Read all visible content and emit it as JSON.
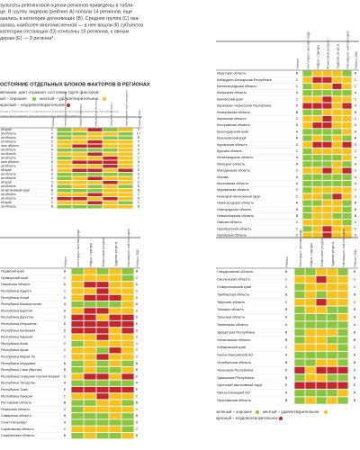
{
  "text": {
    "paragraph": [
      "зультаты рейтинговой оценки регионов приведены в табли-",
      "це. В группу лидеров (рейтинг A) попали 14 регионов, еще",
      "азались в категории догоняющих (B). Средняя группа (C) ока-",
      "залась наиболее многочисленной — в нее вошли 30 субъектов",
      "категории отстающих (D) отнесены 15 регионов, к явным",
      "дерам (E) — 3 региона*."
    ],
    "heading": "ОСТОЯНИЕ ОТДЕЛЬНЫХ БЛОКОВ ФАКТОРОВ В РЕГИОНАХ",
    "legend": [
      "мечание: цвет отражает состояние групп факторов:",
      "ый – хорошее",
      "желтый – удовлетворительное",
      "красный – неудовлетворительное"
    ],
    "note": [
      "блоки в Рейтинге № 1 Совокупность в рейтинге не предусмотрена по причине отсут-",
      "ствия необходимых для регионального рейтинга данных"
    ]
  },
  "palette": {
    "g": "#8cc63f",
    "y": "#f6c21c",
    "r": "#c1272d"
  },
  "columns": [
    "Рейтинг",
    "Институцио- нальная среда",
    "Инфра- структура",
    "Финансовые ресурсы",
    "Трудовые ресурсы",
    "Инновацион- ный потенциал",
    "Рейтинг 2011"
  ],
  "bottom_legend": [
    "зеленый – хорошее",
    "желтый – удовлетворительное",
    "красный – неудовлетворительное"
  ],
  "tables": [
    {
      "rows": [
        [
          "ий край",
          "C",
          "gyrgy",
          "C"
        ],
        [
          "ая область",
          "C",
          "ggyyg",
          "C+"
        ],
        [
          "ая область",
          "B",
          "gyygg",
          "B"
        ],
        [
          "ая область",
          "C",
          "yyryy",
          "C"
        ],
        [
          "ская область",
          "C",
          "yrryy",
          "D"
        ],
        [
          "ая область",
          "A",
          "ggggy",
          "A"
        ],
        [
          "ая область",
          "C",
          "yyryy",
          "C"
        ],
        [
          "ая область",
          "C",
          "gyyry",
          "C"
        ],
        [
          "ская область",
          "D",
          "yrrry",
          "D"
        ],
        [
          "ая область",
          "C",
          "yyyry",
          "C"
        ],
        [
          "ий край",
          "D",
          "yrryr",
          "D"
        ],
        [
          "ая область",
          "A",
          "ggggg",
          "A"
        ],
        [
          "ая область",
          "C",
          "gyryy",
          "C"
        ],
        [
          "ий край",
          "C",
          "yyyry",
          "C"
        ],
        [
          "ая область",
          "B",
          "gygyg",
          "B"
        ],
        [
          "ий автономный округ",
          "B",
          "gggyy",
          "B"
        ],
        [
          "ая область",
          "C",
          "yyryy",
          "C"
        ],
        [
          "ая область",
          "D",
          "rryry",
          "D"
        ],
        [
          "ий край",
          "C",
          "yyryg",
          "C"
        ],
        [
          "ая область",
          "B",
          "gggyy",
          "B"
        ]
      ]
    },
    {
      "rows": [
        [
          "Иркутская область",
          "B",
          "gyyyg",
          "B"
        ],
        [
          "Кабардино-Балкарская Республика",
          "C",
          "yrryy",
          "C"
        ],
        [
          "Калининградская область",
          "C",
          "gyyry",
          "C"
        ],
        [
          "Калужская область",
          "A",
          "ggggg",
          "A"
        ],
        [
          "Камчатский край",
          "C",
          "yyryy",
          "C"
        ],
        [
          "Карачаево-Черкесская Республика",
          "D",
          "rrryr",
          "D"
        ],
        [
          "Кемеровская область",
          "B",
          "ggyyy",
          "B"
        ],
        [
          "Кировская область",
          "C",
          "yyryy",
          "C"
        ],
        [
          "Костромская область",
          "D",
          "yrryy",
          "D"
        ],
        [
          "Краснодарский край",
          "A",
          "ggggy",
          "A"
        ],
        [
          "Красноярский край",
          "B",
          "gygyg",
          "B"
        ],
        [
          "Курганская область",
          "D",
          "yrryr",
          "D"
        ],
        [
          "Курская область",
          "C",
          "gyyyy",
          "C"
        ],
        [
          "Ленинградская область",
          "A",
          "ggggy",
          "A"
        ],
        [
          "Липецкая область",
          "A",
          "gggyg",
          "A"
        ],
        [
          "Магаданская область",
          "C",
          "yyryr",
          "C"
        ],
        [
          "Москва",
          "A",
          "ggggg",
          "A"
        ],
        [
          "Московская область",
          "A",
          "ggggg",
          "A"
        ],
        [
          "Мурманская область",
          "C",
          "gyyyy",
          "C"
        ],
        [
          "Ненецкий автономный округ",
          "C",
          "yygry",
          "C"
        ],
        [
          "Нижегородская область",
          "B",
          "ggyyg",
          "B"
        ],
        [
          "Новгородская область",
          "B",
          "gyyyg",
          "B"
        ],
        [
          "Новосибирская область",
          "B",
          "gyygg",
          "B"
        ],
        [
          "Омская область",
          "C",
          "yyyyg",
          "C"
        ],
        [
          "Оренбургская область",
          "C",
          "gyryy",
          "C"
        ],
        [
          "Орловская область",
          "C",
          "yyryy",
          "D"
        ]
      ]
    },
    {
      "rows": [
        [
          "Пермский край",
          "B",
          "gygyg",
          "B"
        ],
        [
          "Приморский край",
          "C",
          "yyyyg",
          "C"
        ],
        [
          "Псковская область",
          "D",
          "yrryy",
          "D"
        ],
        [
          "Республика Адыгея",
          "C",
          "yyryy",
          "C"
        ],
        [
          "Республика Алтай",
          "D",
          "yrrry",
          "D"
        ],
        [
          "Республика Башкортостан",
          "A",
          "ggggy",
          "A"
        ],
        [
          "Республика Бурятия",
          "D",
          "yrryy",
          "C"
        ],
        [
          "Республика Дагестан",
          "D",
          "rryrr",
          "D"
        ],
        [
          "Республика Ингушетия",
          "E",
          "rrrrr",
          "E"
        ],
        [
          "Республика Калмыкия",
          "D",
          "rrryr",
          "D"
        ],
        [
          "Республика Карелия",
          "C",
          "yyryy",
          "C"
        ],
        [
          "Республика Коми",
          "C",
          "gyyyy",
          "C"
        ],
        [
          "Республика Крым",
          "C",
          "yygry",
          "C"
        ],
        [
          "Республика Марий Эл",
          "C",
          "yyryy",
          "C"
        ],
        [
          "Республика Мордовия",
          "B",
          "gygyg",
          "B"
        ],
        [
          "Республика Саха (Якутия)",
          "B",
          "gyggy",
          "B"
        ],
        [
          "Республика Северная Осетия-Алания",
          "D",
          "yrryr",
          "D"
        ],
        [
          "Республика Татарстан",
          "A",
          "ggggg",
          "A"
        ],
        [
          "Республика Тыва",
          "E",
          "rrrrr",
          "E"
        ],
        [
          "Республика Хакасия",
          "C",
          "yyryy",
          "C"
        ],
        [
          "Ростовская область",
          "B",
          "ggyyg",
          "B"
        ],
        [
          "Рязанская область",
          "C",
          "gyyyy",
          "C"
        ],
        [
          "Самарская область",
          "B",
          "gggyg",
          "B"
        ],
        [
          "Санкт-Петербург",
          "A",
          "ggggg",
          "A"
        ],
        [
          "Саратовская область",
          "C",
          "yyyyg",
          "C"
        ],
        [
          "Сахалинская область",
          "B",
          "gyggy",
          "B"
        ]
      ]
    },
    {
      "rows": [
        [
          "Свердловская область",
          "B",
          "ggyyg",
          "B"
        ],
        [
          "Смоленская область",
          "C",
          "yyryy",
          "C"
        ],
        [
          "Ставропольский край",
          "C",
          "gyyyy",
          "C"
        ],
        [
          "Тамбовская область",
          "B",
          "gygyy",
          "B"
        ],
        [
          "Тверская область",
          "C",
          "yyryy",
          "C"
        ],
        [
          "Томская область",
          "B",
          "gyygg",
          "B"
        ],
        [
          "Тульская область",
          "A",
          "ggggy",
          "A"
        ],
        [
          "Тюменская область",
          "A",
          "ggggg",
          "A"
        ],
        [
          "Удмуртская Республика",
          "B",
          "gyyyg",
          "B"
        ],
        [
          "Ульяновская область",
          "B",
          "gyygg",
          "B"
        ],
        [
          "Хабаровский край",
          "C",
          "yyyyg",
          "C"
        ],
        [
          "Ханты-Мансийский АО",
          "A",
          "ggggg",
          "A"
        ],
        [
          "Челябинская область",
          "B",
          "ggyyg",
          "B"
        ],
        [
          "Чеченская Республика",
          "D",
          "ryrrr",
          "D"
        ],
        [
          "Чувашская Республика",
          "B",
          "gyygg",
          "B"
        ],
        [
          "Чукотский автономный округ",
          "E",
          "rrrrr",
          "E"
        ],
        [
          "Ямало-Ненецкий АО",
          "A",
          "ggggy",
          "A"
        ],
        [
          "Ярославская область",
          "B",
          "gygyg",
          "B"
        ]
      ]
    }
  ]
}
